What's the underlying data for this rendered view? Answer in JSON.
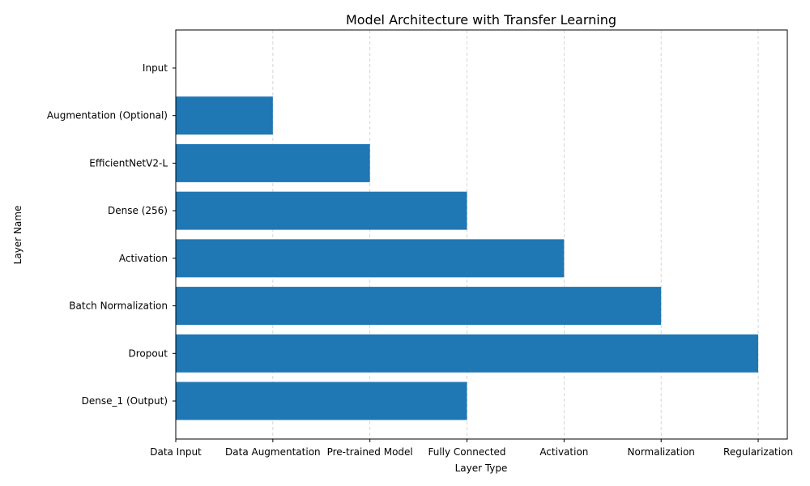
{
  "chart_data": {
    "type": "bar",
    "orientation": "horizontal",
    "title": "Model Architecture with Transfer Learning",
    "xlabel": "Layer Type",
    "ylabel": "Layer Name",
    "categories": [
      "Input",
      "Augmentation (Optional)",
      "EfficientNetV2-L",
      "Dense (256)",
      "Activation",
      "Batch Normalization",
      "Dropout",
      "Dense_1 (Output)"
    ],
    "values": [
      0,
      1,
      2,
      3,
      4,
      5,
      6,
      3
    ],
    "x_tick_labels": [
      "Data Input",
      "Data Augmentation",
      "Pre-trained Model",
      "Fully Connected",
      "Activation",
      "Normalization",
      "Regularization"
    ],
    "xlim": [
      0,
      6.3
    ],
    "grid": "x-dashed",
    "bar_color": "#1f77b4"
  }
}
